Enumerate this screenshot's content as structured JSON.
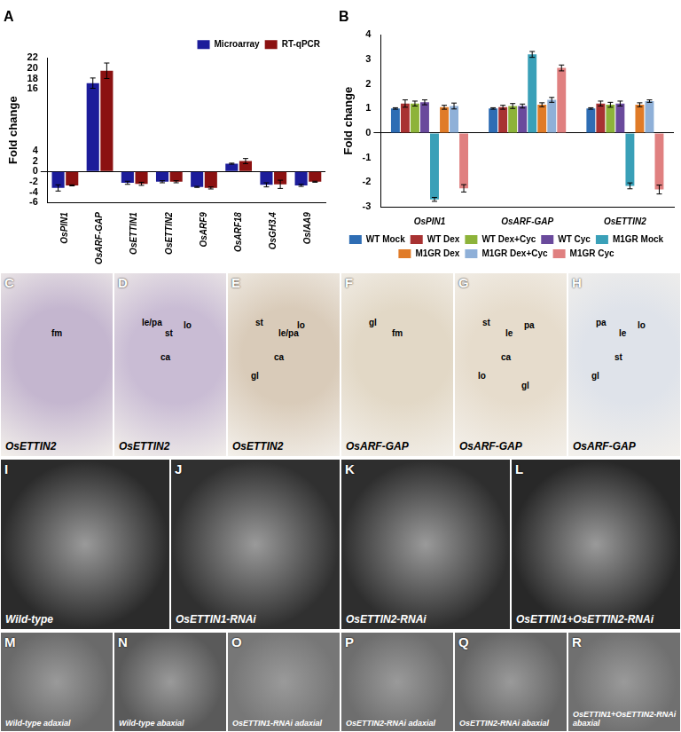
{
  "chart_data": [
    {
      "type": "bar",
      "title": "A",
      "categories": [
        "OsPIN1",
        "OsARF-GAP",
        "OsETTIN1",
        "OsETTIN2",
        "OsARF9",
        "OsARF18",
        "OsGH3.4",
        "OsIAA9"
      ],
      "series": [
        {
          "name": "Microarray",
          "color": "#1c1c9a",
          "values": [
            -3.2,
            17.1,
            -2.2,
            -2.0,
            -3.0,
            1.5,
            -2.6,
            -2.7
          ],
          "errors": [
            0.6,
            1.0,
            0.3,
            0.2,
            0.1,
            0.1,
            0.4,
            0.2
          ]
        },
        {
          "name": "RT-qPCR",
          "color": "#8b1111",
          "values": [
            -2.7,
            19.5,
            -2.4,
            -2.0,
            -3.2,
            2.0,
            -2.5,
            -2.0
          ],
          "errors": [
            0.1,
            1.5,
            0.3,
            0.2,
            0.2,
            0.5,
            0.8,
            0.1
          ]
        }
      ],
      "ylabel": "Fold change",
      "ylim": [
        -6,
        22
      ],
      "yticks": [
        -6,
        -4,
        -2,
        0,
        2,
        4,
        16,
        18,
        20,
        22
      ],
      "grid": false,
      "legend": "top-right"
    },
    {
      "type": "bar",
      "title": "B",
      "categories": [
        "OsPIN1",
        "OsARF-GAP",
        "OsETTIN2"
      ],
      "series": [
        {
          "name": "WT Mock",
          "color": "#2e6db4",
          "values": [
            1.0,
            1.0,
            1.0
          ],
          "errors": [
            0.03,
            0.03,
            0.03
          ]
        },
        {
          "name": "WT Dex",
          "color": "#a83232",
          "values": [
            1.2,
            1.05,
            1.2
          ],
          "errors": [
            0.15,
            0.08,
            0.1
          ]
        },
        {
          "name": "WT Dex+Cyc",
          "color": "#8db33a",
          "values": [
            1.2,
            1.1,
            1.15
          ],
          "errors": [
            0.1,
            0.1,
            0.1
          ]
        },
        {
          "name": "WT Cyc",
          "color": "#6a4a9c",
          "values": [
            1.25,
            1.1,
            1.2
          ],
          "errors": [
            0.1,
            0.08,
            0.1
          ]
        },
        {
          "name": "M1GR Mock",
          "color": "#3aa0b8",
          "values": [
            -2.7,
            3.2,
            -2.15
          ],
          "errors": [
            0.08,
            0.12,
            0.12
          ]
        },
        {
          "name": "M1GR Dex",
          "color": "#e07b28",
          "values": [
            1.05,
            1.15,
            1.15
          ],
          "errors": [
            0.08,
            0.08,
            0.08
          ]
        },
        {
          "name": "M1GR Dex+Cyc",
          "color": "#8fb0d8",
          "values": [
            1.1,
            1.35,
            1.3
          ],
          "errors": [
            0.12,
            0.1,
            0.05
          ]
        },
        {
          "name": "M1GR Cyc",
          "color": "#e08080",
          "values": [
            -2.25,
            2.65,
            -2.3
          ],
          "errors": [
            0.15,
            0.12,
            0.18
          ]
        }
      ],
      "ylabel": "Fold change",
      "ylim": [
        -3,
        4
      ],
      "yticks": [
        -3,
        -2,
        -1,
        0,
        1,
        2,
        3,
        4
      ],
      "grid": false,
      "legend": "bottom"
    }
  ],
  "image_panels": [
    {
      "letter": "C",
      "caption": "OsETTIN2",
      "labels": [
        "fm"
      ]
    },
    {
      "letter": "D",
      "caption": "OsETTIN2",
      "labels": [
        "st",
        "le/pa",
        "ca",
        "lo"
      ]
    },
    {
      "letter": "E",
      "caption": "OsETTIN2",
      "labels": [
        "le/pa",
        "st",
        "ca",
        "lo",
        "gl"
      ]
    },
    {
      "letter": "F",
      "caption": "OsARF-GAP",
      "labels": [
        "fm",
        "gl"
      ]
    },
    {
      "letter": "G",
      "caption": "OsARF-GAP",
      "labels": [
        "le",
        "st",
        "ca",
        "pa",
        "lo",
        "gl"
      ]
    },
    {
      "letter": "H",
      "caption": "OsARF-GAP",
      "labels": [
        "le",
        "pa",
        "st",
        "lo",
        "gl"
      ]
    },
    {
      "letter": "I",
      "caption": "Wild-type",
      "labels": []
    },
    {
      "letter": "J",
      "caption": "OsETTIN1-RNAi",
      "labels": []
    },
    {
      "letter": "K",
      "caption": "OsETTIN2-RNAi",
      "labels": []
    },
    {
      "letter": "L",
      "caption": "OsETTIN1+OsETTIN2-RNAi",
      "labels": []
    },
    {
      "letter": "M",
      "caption": "Wild-type adaxial",
      "labels": []
    },
    {
      "letter": "N",
      "caption": "Wild-type abaxial",
      "labels": []
    },
    {
      "letter": "O",
      "caption": "OsETTIN1-RNAi adaxial",
      "labels": []
    },
    {
      "letter": "P",
      "caption": "OsETTIN2-RNAi adaxial",
      "labels": []
    },
    {
      "letter": "Q",
      "caption": "OsETTIN2-RNAi abaxial",
      "labels": []
    },
    {
      "letter": "R",
      "caption": "OsETTIN1+OsETTIN2-RNAi abaxial",
      "labels": []
    }
  ]
}
